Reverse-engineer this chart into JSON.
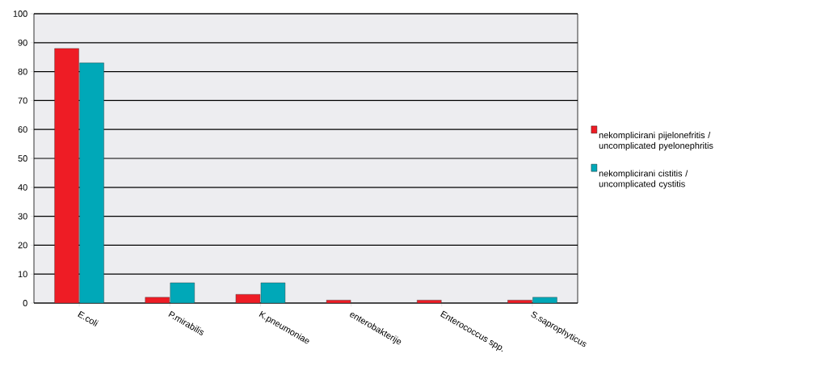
{
  "chart_data": {
    "type": "bar",
    "categories": [
      "E.coli",
      "P.mirabilis",
      "K.pneumoniae",
      "enterobakterije",
      "Enterococcus spp.",
      "S.saprophyticus"
    ],
    "series": [
      {
        "name": "nekomplicirani pijelonefritis / uncomplicated pyelonephritis",
        "color": "#ee1c25",
        "values": [
          88,
          2,
          3,
          1,
          1,
          1
        ]
      },
      {
        "name": "nekomplicirani cistitis / uncomplicated cystitis",
        "color": "#00a8b8",
        "values": [
          83,
          7,
          7,
          null,
          null,
          2
        ]
      }
    ],
    "ylim": [
      0,
      100
    ],
    "yticks": [
      0,
      10,
      20,
      30,
      40,
      50,
      60,
      70,
      80,
      90,
      100
    ],
    "grid": "y",
    "legend": "right"
  }
}
